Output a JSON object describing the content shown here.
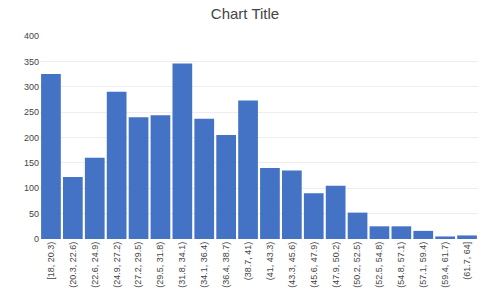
{
  "chart_data": {
    "type": "bar",
    "title": "Chart Title",
    "categories": [
      "[18, 20.3)",
      "(20.3, 22.6)",
      "(22.6, 24.9)",
      "(24.9, 27.2)",
      "(27.2, 29.5)",
      "(29.5, 31.8)",
      "(31.8, 34.1)",
      "(34.1, 36.4)",
      "(36.4, 38.7)",
      "(38.7, 41)",
      "(41, 43.3)",
      "(43.3, 45.6)",
      "(45.6, 47.9)",
      "(47.9, 50.2)",
      "(50.2, 52.5)",
      "(52.5, 54.8)",
      "(54.8, 57.1)",
      "(57.1, 59.4)",
      "(59.4, 61.7)",
      "(61.7, 64]"
    ],
    "values": [
      325,
      122,
      160,
      290,
      240,
      244,
      346,
      237,
      205,
      273,
      140,
      135,
      90,
      105,
      52,
      25,
      25,
      16,
      5,
      7
    ],
    "color": "#4472C4",
    "ylim": [
      0,
      400
    ],
    "yticks": [
      0,
      50,
      100,
      150,
      200,
      250,
      300,
      350,
      400
    ],
    "grid": true
  }
}
